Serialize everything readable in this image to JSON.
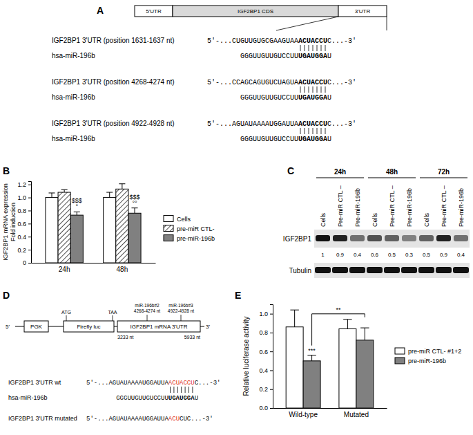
{
  "chart_data": [
    {
      "type": "bar",
      "title": "B",
      "y_label": [
        "IGF2BP1 mRNA expression",
        "Fold induction"
      ],
      "categories": [
        "24h",
        "48h"
      ],
      "series": [
        {
          "name": "Cells",
          "color": "#ffffff",
          "values": [
            1.0,
            1.0
          ],
          "errors": [
            0.07,
            0.08
          ]
        },
        {
          "name": "pre-miR CTL-",
          "color": "#ffffff",
          "line_style": "hatched",
          "values": [
            1.08,
            1.13
          ],
          "errors": [
            0.04,
            0.08
          ]
        },
        {
          "name": "pre-miR-196b",
          "color": "#808080",
          "values": [
            0.73,
            0.76
          ],
          "errors": [
            0.05,
            0.08
          ],
          "annotations": [
            [
              "$$$",
              "°"
            ],
            [
              "$$$",
              "°°"
            ]
          ]
        }
      ],
      "ylim": [
        0,
        1.25
      ],
      "yticks": [
        0,
        0.2,
        0.4,
        0.6,
        0.8,
        {
          "value": 1,
          "label": "1.0"
        },
        1.2
      ],
      "legend": "right"
    },
    {
      "type": "bar",
      "title": "E",
      "y_label": [
        "Relative luciferase activity"
      ],
      "categories": [
        "Wild-type",
        "Mutated"
      ],
      "series": [
        {
          "name": "pre-miR CTL- #1+2",
          "color": "#ffffff",
          "values": [
            0.86,
            0.84
          ],
          "errors": [
            0.18,
            0.1
          ]
        },
        {
          "name": "pre-miR-196b",
          "color": "#808080",
          "values": [
            0.5,
            0.72
          ],
          "errors": [
            0.06,
            0.13
          ],
          "annotations": [
            [
              "***"
            ],
            null
          ]
        }
      ],
      "comparisons": [
        {
          "label": "**",
          "categories": [
            "Wild-type",
            "Mutated"
          ],
          "series": "pre-miR-196b"
        }
      ],
      "ylim": [
        0,
        1.1
      ],
      "yticks": [
        {
          "value": 0,
          "label": "0.0"
        },
        0.2,
        0.4,
        0.6,
        0.8,
        {
          "value": 1,
          "label": "1.0"
        }
      ],
      "legend": "right"
    }
  ],
  "panel_a": {
    "title": "A",
    "gene": [
      "5'UTR",
      "IGF2BP1 CDS",
      "3'UTR"
    ],
    "sites": [
      {
        "label": "IGF2BP1 3'UTR (position 1631-1637 nt)",
        "target": [
          "5'-...CUGUUGUGCGAAGUAA",
          "ACUACCU",
          "C...-3'"
        ],
        "mirna_name": "hsa-miR-196b",
        "mirna": [
          "GGGUUGUUGUCCUU",
          "UGAUGGA",
          "U"
        ]
      },
      {
        "label": "IGF2BP1 3'UTR (position 4268-4274 nt)",
        "target": [
          "5'-...CCAGCAGUGUCUAGUA",
          "ACUACCU",
          "C...-3'"
        ],
        "mirna_name": "hsa-miR-196b",
        "mirna": [
          "GGGUUGUUGUCCUU",
          "UGAUGGA",
          "U"
        ]
      },
      {
        "label": "IGF2BP1 3'UTR (position 4922-4928 nt)",
        "target": [
          "5'-...AGUAUAAAAUGGAUUA",
          "ACUACCU",
          "C...-3'"
        ],
        "mirna_name": "hsa-miR-196b",
        "mirna": [
          "GGGUUGUUGUCCUU",
          "UGAUGGA",
          "U"
        ]
      }
    ]
  },
  "panel_c": {
    "title": "C",
    "times": [
      "24h",
      "48h",
      "72h"
    ],
    "lanes": [
      "Cells",
      "Pre-miR CTL –",
      "Pre-miR-196b"
    ],
    "proteins": [
      "IGF2BP1",
      "Tubulin"
    ],
    "quantification": [
      1,
      0.9,
      0.4,
      0.6,
      0.5,
      0.3,
      0.5,
      0.9,
      0.4
    ]
  },
  "panel_d": {
    "title": "D",
    "construct": {
      "promoter": "PGK",
      "reporter": "Firefly luc",
      "utr": "IGF2BP1 mRNA 3'UTR",
      "start": "ATG",
      "stop": "TAA",
      "sites": [
        "miR-196b#2",
        "miR-196b#3"
      ],
      "site_positions": [
        "4268-4274 nt",
        "4922-4928 nt"
      ],
      "utr_start": "3233 nt",
      "utr_end": "5933 nt",
      "five": "5'",
      "three": "3'"
    },
    "wt_label": "IGF2BP1 3'UTR wt",
    "wt": [
      "5'-...AGUAUAAAAUGGAUUA",
      "ACUACCU",
      "C...-3'"
    ],
    "mirna_name": "hsa-miR-196b",
    "mirna": [
      "GGGUUGUUGUCCUU",
      "UGAUGGA",
      "U"
    ],
    "mut_label": "IGF2BP1 3'UTR mutated",
    "mut": [
      "5'-...AGUAUAAAAUGGAUUA",
      "ACU",
      "CUC...-3'"
    ]
  }
}
